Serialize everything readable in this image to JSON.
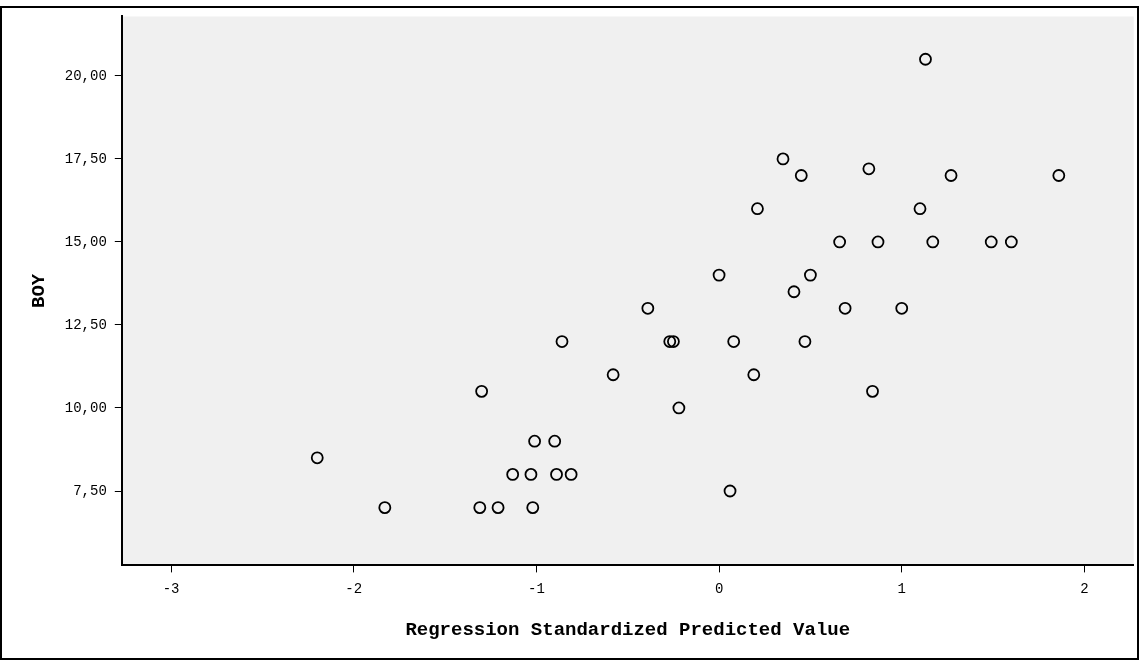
{
  "chart_data": {
    "type": "scatter",
    "xlabel": "Regression Standardized Predicted Value",
    "ylabel": "BOY",
    "series": [
      {
        "color": "#000000",
        "x": [
          1.13,
          0.35,
          0.45,
          0.82,
          1.27,
          1.86,
          0.21,
          1.1,
          0.66,
          0.87,
          1.17,
          1.49,
          1.6,
          0.0,
          0.5,
          0.41,
          -0.39,
          0.69,
          1.0,
          -0.27,
          -0.25,
          0.08,
          0.47,
          -0.58,
          0.19,
          -0.22,
          0.84,
          -0.86,
          -1.3,
          -1.01,
          -0.9,
          -1.13,
          -1.03,
          -0.89,
          -0.81,
          -2.2,
          -1.83,
          -1.31,
          -1.21,
          -1.02,
          0.06
        ],
        "values": [
          20.5,
          17.5,
          17.0,
          17.2,
          17.0,
          17.0,
          16.0,
          16.0,
          15.0,
          15.0,
          15.0,
          15.0,
          15.0,
          14.0,
          14.0,
          13.5,
          13.0,
          13.0,
          13.0,
          12.0,
          12.0,
          12.0,
          12.0,
          11.0,
          11.0,
          10.0,
          10.5,
          12.0,
          10.5,
          9.0,
          9.0,
          8.0,
          8.0,
          8.0,
          8.0,
          8.5,
          7.0,
          7.0,
          7.0,
          7.0,
          7.5
        ]
      }
    ],
    "xlim": [
      -3.27,
      2.27
    ],
    "ylim": [
      5.26,
      21.79
    ],
    "xticks": [
      -3,
      -2,
      -1,
      0,
      1,
      2
    ],
    "yticks": [
      {
        "value": 7.5,
        "label": "7,50"
      },
      {
        "value": 10,
        "label": "10,00"
      },
      {
        "value": 12.5,
        "label": "12,50"
      },
      {
        "value": 15,
        "label": "15,00"
      },
      {
        "value": 17.5,
        "label": "17,50"
      },
      {
        "value": 20,
        "label": "20,00"
      }
    ],
    "grid": false,
    "legend": false,
    "marker": "circle"
  }
}
